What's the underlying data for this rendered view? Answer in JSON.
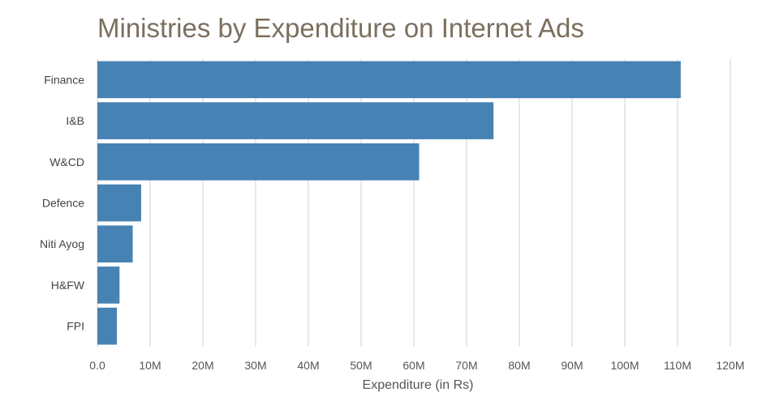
{
  "chart_data": {
    "type": "bar",
    "orientation": "horizontal",
    "title": "Ministries by Expenditure on Internet Ads",
    "xlabel": "Expenditure (in Rs)",
    "ylabel": "",
    "categories": [
      "Finance",
      "I&B",
      "W&CD",
      "Defence",
      "Niti Ayog",
      "H&FW",
      "FPI"
    ],
    "values": [
      110600000,
      75100000,
      61000000,
      8300000,
      6700000,
      4200000,
      3700000
    ],
    "xlim": [
      0,
      120000000
    ],
    "ticks": [
      0,
      10000000,
      20000000,
      30000000,
      40000000,
      50000000,
      60000000,
      70000000,
      80000000,
      90000000,
      100000000,
      110000000,
      120000000
    ],
    "tick_labels": [
      "0.0",
      "10M",
      "20M",
      "30M",
      "40M",
      "50M",
      "60M",
      "70M",
      "80M",
      "90M",
      "100M",
      "110M",
      "120M"
    ],
    "grid": true,
    "legend": "none",
    "bar_color": "#4682b4",
    "title_color": "#7b6f5e"
  }
}
